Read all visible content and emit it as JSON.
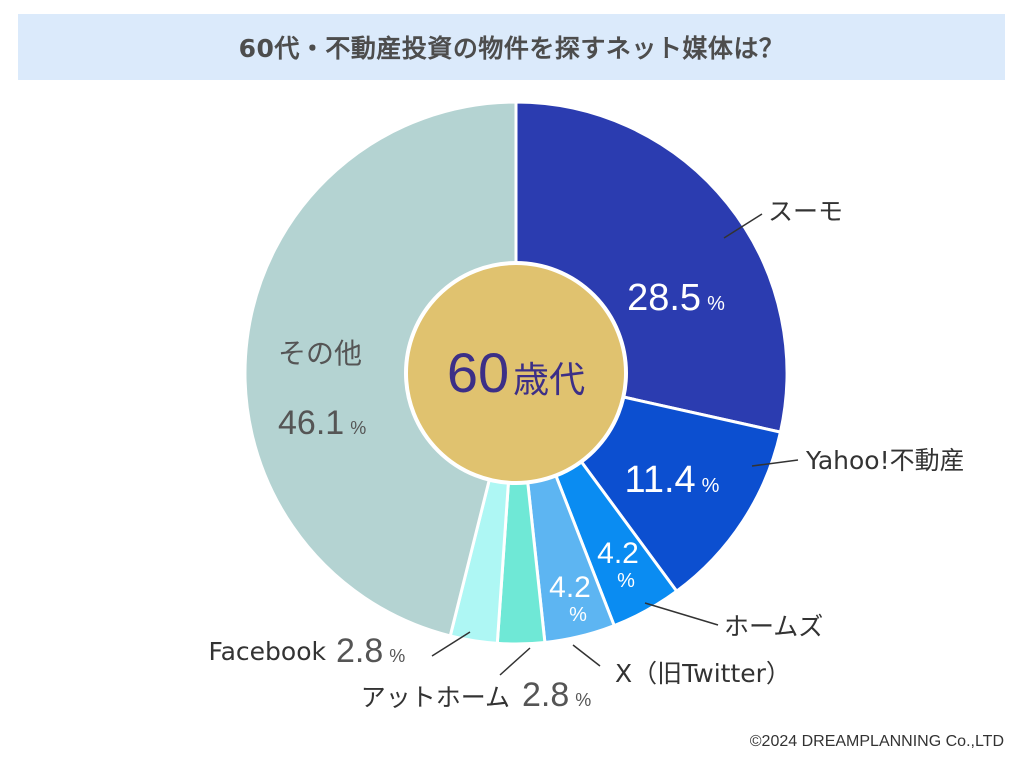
{
  "title": "60代・不動産投資の物件を探すネット媒体は？",
  "center_label": {
    "number": "60",
    "suffix": "歳代"
  },
  "percent_sign": "%",
  "copyright": "©2024 DREAMPLANNING Co.,LTD",
  "colors": {
    "title_bg": "#dbeafb",
    "center": "#e0c26f",
    "center_text": "#3c2f87",
    "スーモ": "#2b3cb0",
    "Yahoo!不動産": "#0c4fd0",
    "ホームズ": "#0a8cf2",
    "X（旧Twitter）": "#5db5f2",
    "アットホーム": "#6fe8d6",
    "Facebook": "#aef7f4",
    "その他": "#b4d3d2"
  },
  "chart_data": {
    "type": "pie",
    "title": "60代・不動産投資の物件を探すネット媒体は？",
    "unit": "%",
    "slices": [
      {
        "label": "スーモ",
        "value": 28.5,
        "value_text": "28.5"
      },
      {
        "label": "Yahoo!不動産",
        "value": 11.4,
        "value_text": "11.4"
      },
      {
        "label": "ホームズ",
        "value": 4.2,
        "value_text": "4.2"
      },
      {
        "label": "X（旧Twitter）",
        "value": 4.2,
        "value_text": "4.2"
      },
      {
        "label": "アットホーム",
        "value": 2.8,
        "value_text": "2.8"
      },
      {
        "label": "Facebook",
        "value": 2.8,
        "value_text": "2.8"
      },
      {
        "label": "その他",
        "value": 46.1,
        "value_text": "46.1"
      }
    ]
  }
}
